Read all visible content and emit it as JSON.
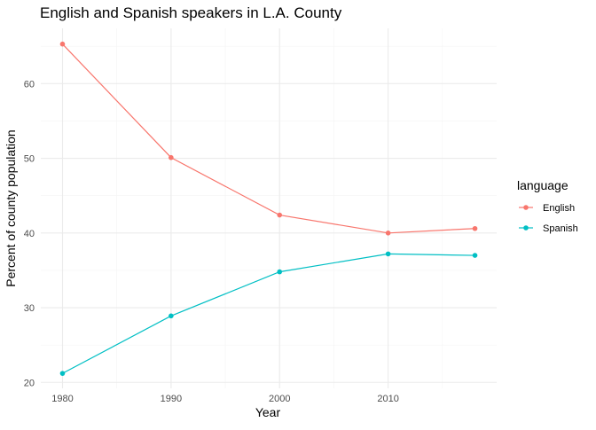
{
  "chart_data": {
    "type": "line",
    "title": "English and Spanish speakers in L.A. County",
    "xlabel": "Year",
    "ylabel": "Percent of county population",
    "x": [
      1980,
      1990,
      2000,
      2010,
      2018
    ],
    "xlim": [
      1978,
      2020
    ],
    "ylim": [
      19.2,
      67.4
    ],
    "x_ticks": [
      1980,
      1990,
      2000,
      2010
    ],
    "x_minor_ticks": [
      1985,
      1995,
      2005,
      2015
    ],
    "y_ticks": [
      20,
      30,
      40,
      50,
      60
    ],
    "y_minor_ticks": [
      25,
      35,
      45,
      55,
      65
    ],
    "grid": true,
    "legend": {
      "title": "language",
      "position": "right"
    },
    "series": [
      {
        "name": "English",
        "color": "#F8766D",
        "values": [
          65.3,
          50.1,
          42.4,
          40.0,
          40.6
        ]
      },
      {
        "name": "Spanish",
        "color": "#00BFC4",
        "values": [
          21.2,
          28.9,
          34.8,
          37.2,
          37.0
        ]
      }
    ]
  }
}
